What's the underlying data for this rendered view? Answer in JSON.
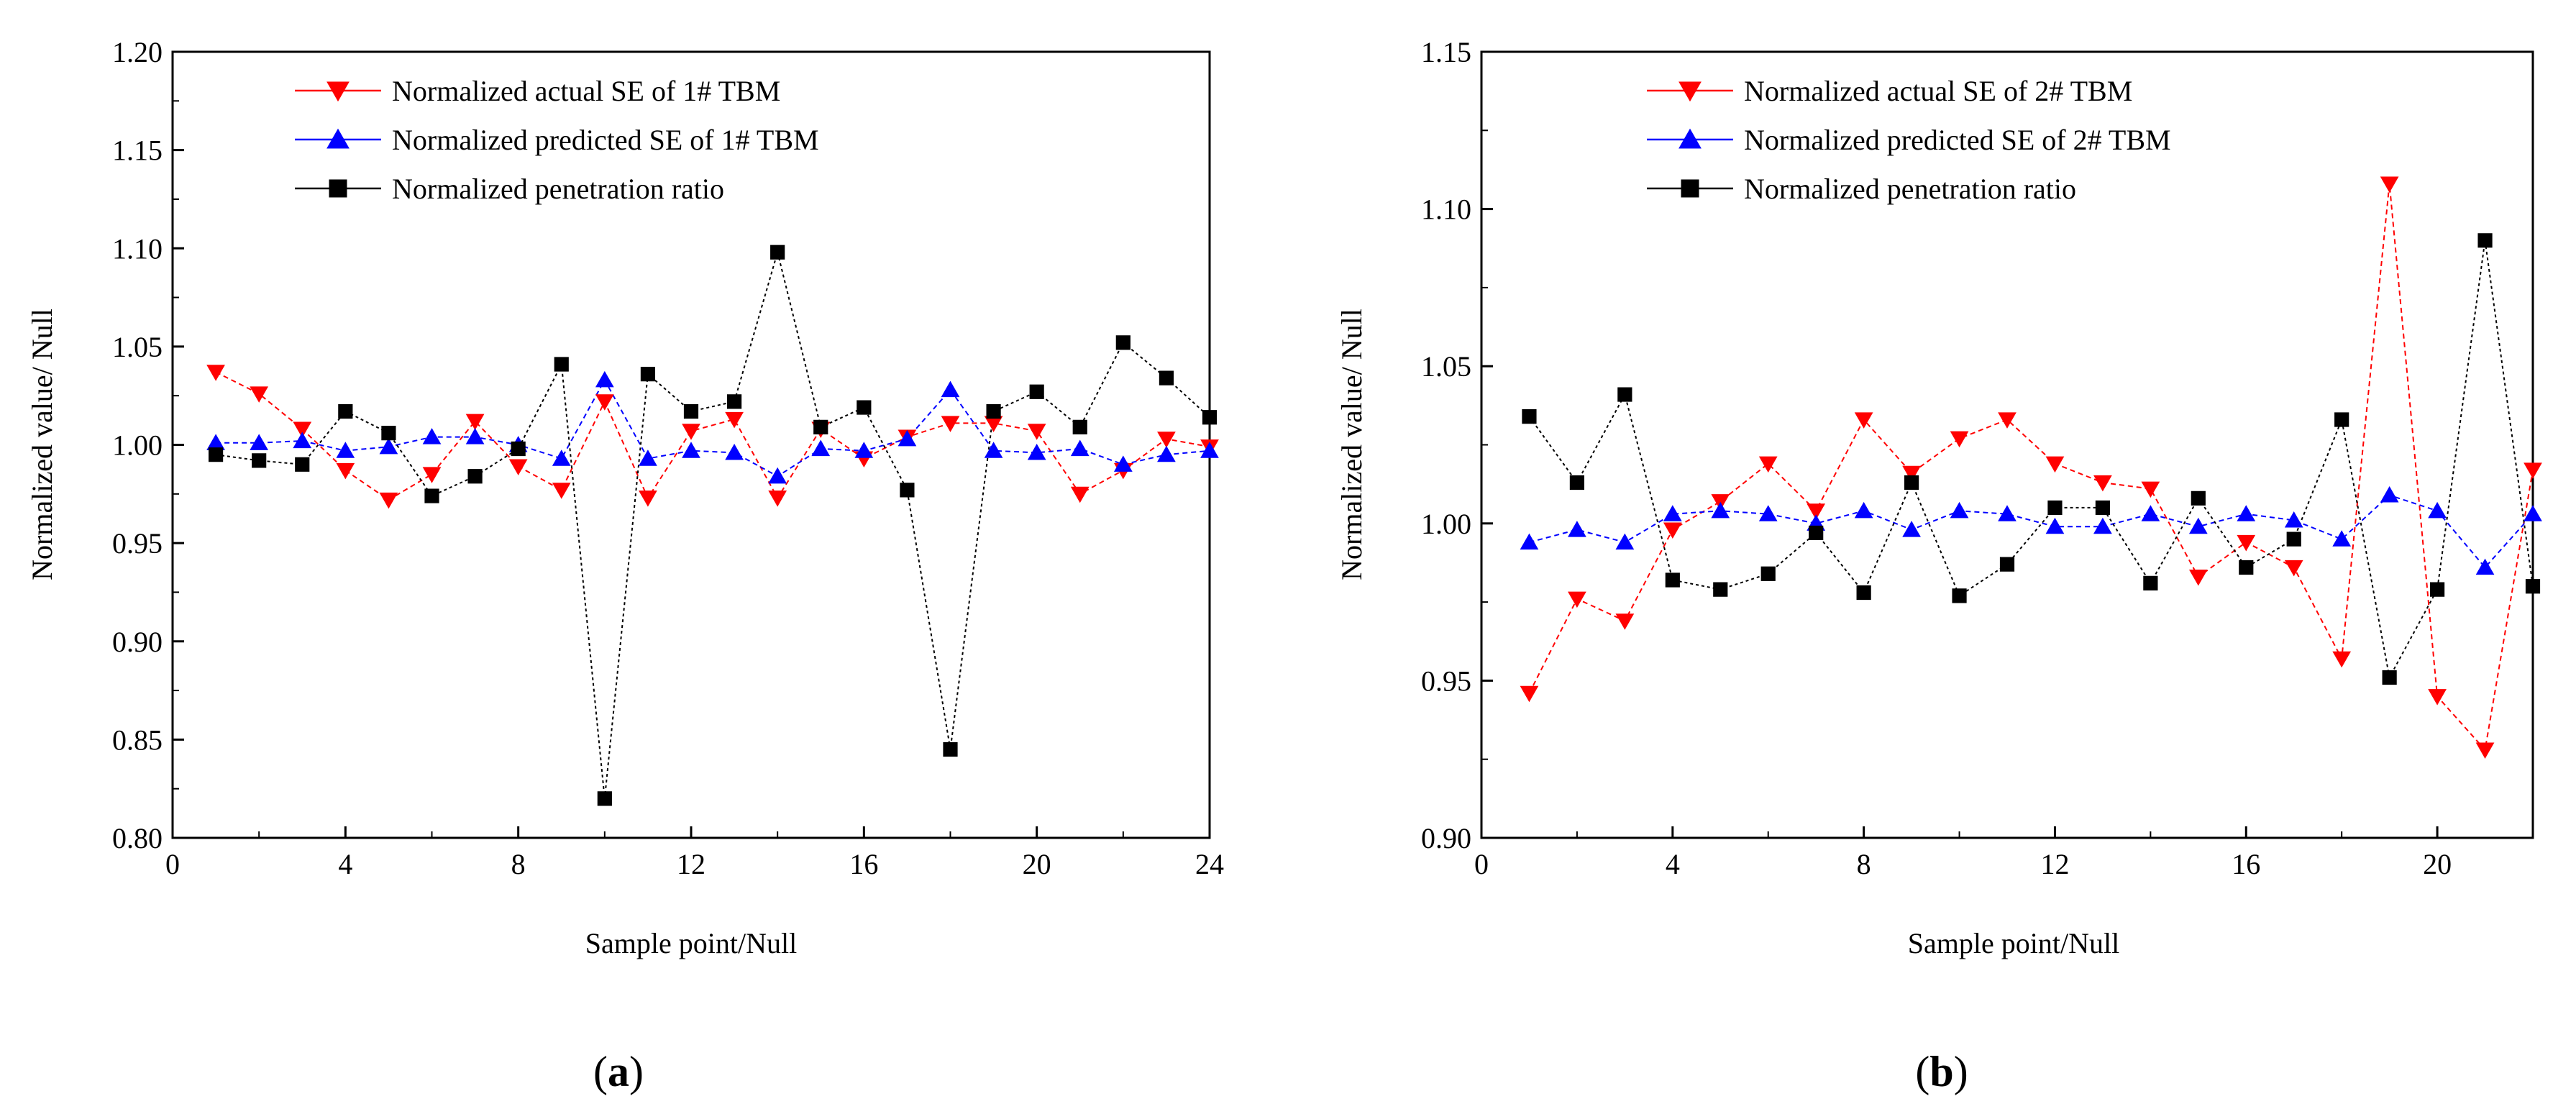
{
  "chart_data": [
    {
      "type": "line",
      "panel_label": "a",
      "title": "",
      "xlabel": "Sample point/Null",
      "ylabel": "Normalized value/ Null",
      "xlim": [
        0,
        24
      ],
      "ylim": [
        0.8,
        1.2
      ],
      "xticks": [
        "0",
        "4",
        "8",
        "12",
        "16",
        "20",
        "24"
      ],
      "yticks": [
        "0.80",
        "0.85",
        "0.90",
        "0.95",
        "1.00",
        "1.05",
        "1.10",
        "1.15",
        "1.20"
      ],
      "x": [
        1,
        2,
        3,
        4,
        5,
        6,
        7,
        8,
        9,
        10,
        11,
        12,
        13,
        14,
        15,
        16,
        17,
        18,
        19,
        20,
        21,
        22,
        23,
        24
      ],
      "legend_position": "top-center",
      "series": [
        {
          "name": "Normalized actual SE of 1# TBM",
          "color": "#ff0000",
          "marker": "triangle-down",
          "values": [
            1.037,
            1.026,
            1.008,
            0.987,
            0.972,
            0.985,
            1.012,
            0.989,
            0.977,
            1.022,
            0.973,
            1.007,
            1.013,
            0.973,
            1.008,
            0.993,
            1.004,
            1.011,
            1.011,
            1.007,
            0.975,
            0.987,
            1.003,
            0.999
          ]
        },
        {
          "name": "Normalized predicted SE of 1# TBM",
          "color": "#0000ff",
          "marker": "triangle-up",
          "values": [
            1.001,
            1.001,
            1.002,
            0.997,
            0.999,
            1.004,
            1.004,
            1.0,
            0.993,
            1.033,
            0.993,
            0.997,
            0.996,
            0.984,
            0.998,
            0.997,
            1.003,
            1.028,
            0.997,
            0.996,
            0.998,
            0.99,
            0.995,
            0.997
          ]
        },
        {
          "name": "Normalized penetration ratio",
          "color": "#000000",
          "marker": "square",
          "values": [
            0.995,
            0.992,
            0.99,
            1.017,
            1.006,
            0.974,
            0.984,
            0.998,
            1.041,
            0.82,
            1.036,
            1.017,
            1.022,
            1.098,
            1.009,
            1.019,
            0.977,
            0.845,
            1.017,
            1.027,
            1.009,
            1.052,
            1.034,
            1.014
          ]
        }
      ]
    },
    {
      "type": "line",
      "panel_label": "b",
      "title": "",
      "xlabel": "Sample point/Null",
      "ylabel": "Normalized value/ Null",
      "xlim": [
        0,
        22
      ],
      "ylim": [
        0.9,
        1.15
      ],
      "xticks": [
        "0",
        "4",
        "8",
        "12",
        "16",
        "20"
      ],
      "yticks": [
        "0.90",
        "0.95",
        "1.00",
        "1.05",
        "1.10",
        "1.15"
      ],
      "x": [
        1,
        2,
        3,
        4,
        5,
        6,
        7,
        8,
        9,
        10,
        11,
        12,
        13,
        14,
        15,
        16,
        17,
        18,
        19,
        20,
        21,
        22
      ],
      "legend_position": "top-center",
      "series": [
        {
          "name": "Normalized actual SE of 2# TBM",
          "color": "#ff0000",
          "marker": "triangle-down",
          "values": [
            0.946,
            0.976,
            0.969,
            0.998,
            1.007,
            1.019,
            1.004,
            1.033,
            1.016,
            1.027,
            1.033,
            1.019,
            1.013,
            1.011,
            0.983,
            0.994,
            0.986,
            0.957,
            1.108,
            0.945,
            0.928,
            1.017
          ]
        },
        {
          "name": "Normalized predicted SE of 2# TBM",
          "color": "#0000ff",
          "marker": "triangle-up",
          "values": [
            0.994,
            0.998,
            0.994,
            1.003,
            1.004,
            1.003,
            1.0,
            1.004,
            0.998,
            1.004,
            1.003,
            0.999,
            0.999,
            1.003,
            0.999,
            1.003,
            1.001,
            0.995,
            1.009,
            1.004,
            0.986,
            1.003
          ]
        },
        {
          "name": "Normalized penetration ratio",
          "color": "#000000",
          "marker": "square",
          "values": [
            1.034,
            1.013,
            1.041,
            0.982,
            0.979,
            0.984,
            0.997,
            0.978,
            1.013,
            0.977,
            0.987,
            1.005,
            1.005,
            0.981,
            1.008,
            0.986,
            0.995,
            1.033,
            0.951,
            0.979,
            1.09,
            0.98
          ]
        }
      ]
    }
  ]
}
